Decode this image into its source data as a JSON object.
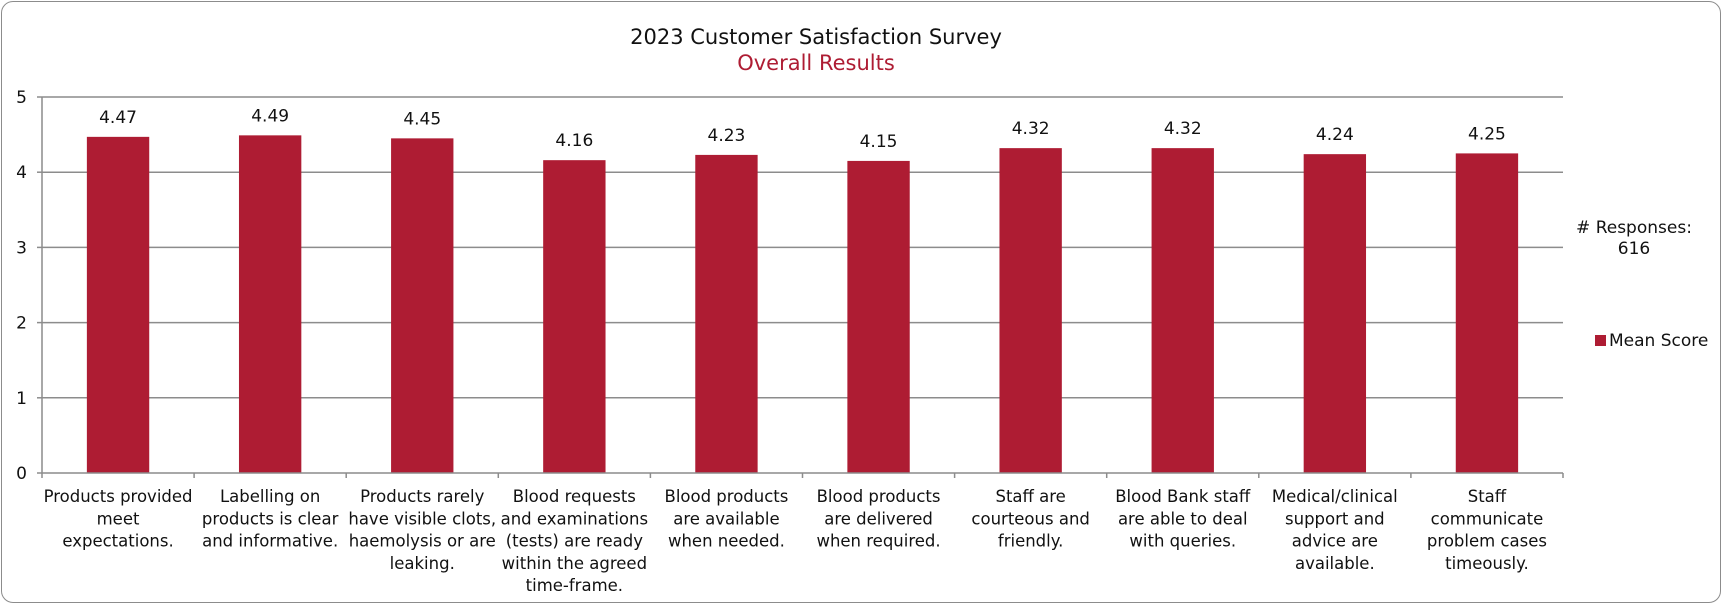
{
  "chart_data": {
    "type": "bar",
    "title": "2023 Customer Satisfaction Survey",
    "subtitle": "Overall Results",
    "categories": [
      [
        "Products provided",
        "meet",
        "expectations."
      ],
      [
        "Labelling on",
        "products is clear",
        "and informative."
      ],
      [
        "Products rarely",
        "have visible clots,",
        "haemolysis or are",
        "leaking."
      ],
      [
        "Blood requests",
        "and examinations",
        "(tests) are ready",
        "within the agreed",
        "time-frame."
      ],
      [
        "Blood products",
        "are available",
        "when needed."
      ],
      [
        "Blood products",
        "are delivered",
        "when required."
      ],
      [
        "Staff are",
        "courteous and",
        "friendly."
      ],
      [
        "Blood Bank staff",
        "are able to deal",
        "with queries."
      ],
      [
        "Medical/clinical",
        "support and",
        "advice are",
        "available."
      ],
      [
        "Staff",
        "communicate",
        "problem cases",
        "timeously."
      ]
    ],
    "series": [
      {
        "name": "Mean Score",
        "values": [
          4.47,
          4.49,
          4.45,
          4.16,
          4.23,
          4.15,
          4.32,
          4.32,
          4.24,
          4.25
        ],
        "labels": [
          "4.47",
          "4.49",
          "4.45",
          "4.16",
          "4.23",
          "4.15",
          "4.32",
          "4.32",
          "4.24",
          "4.25"
        ]
      }
    ],
    "ylim": [
      0,
      5
    ],
    "yticks": [
      "0",
      "1",
      "2",
      "3",
      "4",
      "5"
    ],
    "grid": true,
    "legend_position": "right",
    "side_note": [
      "# Responses:",
      "616"
    ]
  },
  "colors": {
    "bar": "#ae1c33",
    "subtitle": "#ae1c33",
    "grid": "#8c8c8c",
    "axis": "#8c8c8c",
    "text": "#111111"
  }
}
